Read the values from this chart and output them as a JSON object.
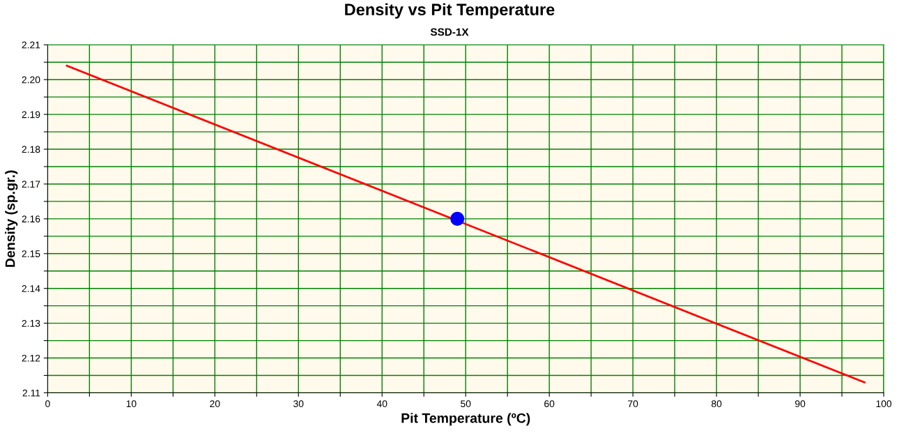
{
  "chart_data": {
    "type": "line",
    "title": "Density vs Pit Temperature",
    "subtitle": "SSD-1X",
    "xlabel": "Pit Temperature (ºC)",
    "ylabel": "Density (sp.gr.)",
    "series": [
      {
        "color": "#ff0000",
        "x": [
          2.3,
          97.7
        ],
        "values": [
          2.204,
          2.113
        ],
        "marker": "none"
      },
      {
        "type": "scatter",
        "color": "#0000ff",
        "x": [
          49
        ],
        "values": [
          2.16
        ],
        "marker": "circle"
      }
    ],
    "xlim": [
      0,
      100
    ],
    "ylim": [
      2.11,
      2.21
    ],
    "xticks": [
      0,
      {
        "value": 5,
        "label": null
      },
      10,
      {
        "value": 15,
        "label": null
      },
      20,
      {
        "value": 25,
        "label": null
      },
      30,
      {
        "value": 35,
        "label": null
      },
      40,
      {
        "value": 45,
        "label": null
      },
      50,
      {
        "value": 55,
        "label": null
      },
      60,
      {
        "value": 65,
        "label": null
      },
      70,
      {
        "value": 75,
        "label": null
      },
      80,
      {
        "value": 85,
        "label": null
      },
      90,
      {
        "value": 95,
        "label": null
      },
      100
    ],
    "yticks": [
      2.11,
      {
        "value": 2.115,
        "label": null
      },
      "2.12",
      {
        "value": 2.125,
        "label": null
      },
      2.13,
      {
        "value": 2.135,
        "label": null
      },
      2.14,
      {
        "value": 2.145,
        "label": null
      },
      2.15,
      {
        "value": 2.155,
        "label": null
      },
      2.16,
      {
        "value": 2.165,
        "label": null
      },
      2.17,
      {
        "value": 2.175,
        "label": null
      },
      2.18,
      {
        "value": 2.185,
        "label": null
      },
      2.19,
      {
        "value": 2.195,
        "label": null
      },
      {
        "value": 2.2,
        "label": "2.20"
      },
      {
        "value": 2.205,
        "label": null
      },
      2.21
    ],
    "grid": true,
    "legend": false
  }
}
